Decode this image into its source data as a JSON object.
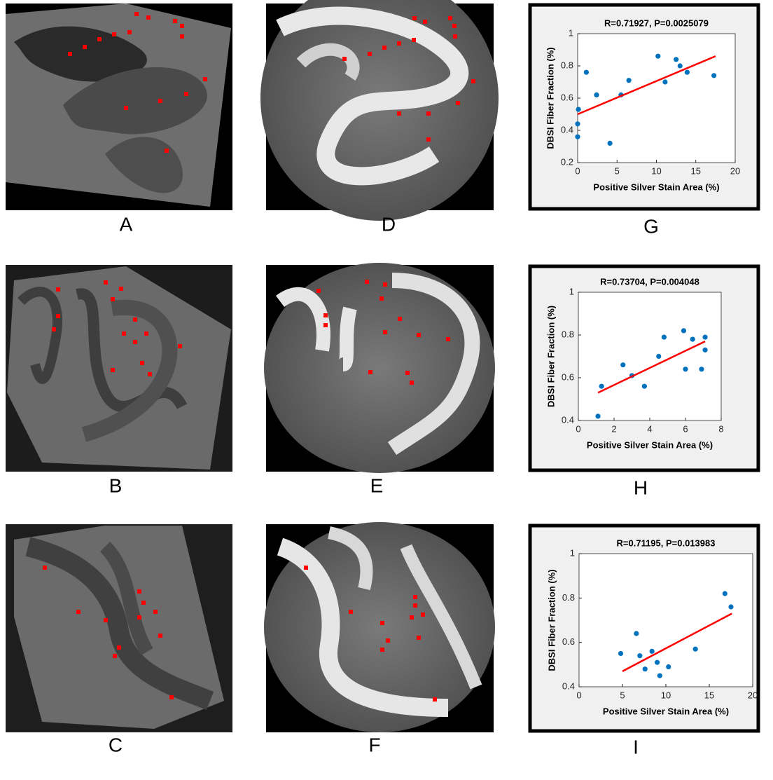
{
  "panel_labels": [
    "A",
    "B",
    "C",
    "D",
    "E",
    "F",
    "G",
    "H",
    "I"
  ],
  "chart_data": [
    {
      "type": "scatter",
      "title": "R=0.71927, P=0.0025079",
      "x_label": "Positive Silver Stain Area (%)",
      "y_label": "DBSI Fiber Fraction (%)",
      "x": [
        0,
        0,
        0.1,
        1.1,
        2.4,
        4.1,
        5.5,
        6.5,
        10.2,
        11.1,
        12.5,
        13,
        13.9,
        17.3
      ],
      "values": [
        0.36,
        0.44,
        0.53,
        0.76,
        0.62,
        0.32,
        0.62,
        0.71,
        0.86,
        0.7,
        0.84,
        0.8,
        0.76,
        0.74
      ],
      "color": "#0072bd",
      "fit": {
        "x": [
          0,
          17.5
        ],
        "values": [
          0.5,
          0.86
        ],
        "color": "#ff0000"
      },
      "xlim": [
        0,
        20
      ],
      "xticks": [
        0,
        5,
        10,
        15,
        20
      ],
      "ylim": [
        0.2,
        1
      ],
      "yticks": [
        0.2,
        0.4,
        0.6,
        0.8,
        1
      ]
    },
    {
      "type": "scatter",
      "title": "R=0.73704, P=0.004048",
      "x_label": "Positive Silver Stain Area (%)",
      "y_label": "DBSI Fiber Fraction (%)",
      "x": [
        1.1,
        1.3,
        2.5,
        3,
        3.7,
        4.5,
        4.8,
        5.9,
        6,
        6.4,
        6.9,
        7.1,
        7.1
      ],
      "values": [
        0.42,
        0.56,
        0.66,
        0.61,
        0.56,
        0.7,
        0.79,
        0.82,
        0.64,
        0.78,
        0.64,
        0.73,
        0.79
      ],
      "color": "#0072bd",
      "fit": {
        "x": [
          1.1,
          7.1
        ],
        "values": [
          0.53,
          0.77
        ],
        "color": "#ff0000"
      },
      "xlim": [
        0,
        8
      ],
      "xticks": [
        0,
        2,
        4,
        6,
        8
      ],
      "ylim": [
        0.4,
        1
      ],
      "yticks": [
        0.4,
        0.6,
        0.8,
        1
      ]
    },
    {
      "type": "scatter",
      "title": "R=0.71195, P=0.013983",
      "x_label": "Positive Silver Stain Area (%)",
      "y_label": "DBSI Fiber Fraction (%)",
      "x": [
        4.8,
        6.6,
        7,
        7.6,
        8.4,
        9,
        9.3,
        10.3,
        13.4,
        16.8,
        17.5
      ],
      "values": [
        0.55,
        0.64,
        0.54,
        0.48,
        0.56,
        0.51,
        0.45,
        0.49,
        0.57,
        0.82,
        0.76
      ],
      "color": "#0072bd",
      "fit": {
        "x": [
          5,
          17.6
        ],
        "values": [
          0.47,
          0.73
        ],
        "color": "#ff0000"
      },
      "xlim": [
        0,
        20
      ],
      "xticks": [
        0,
        5,
        10,
        15,
        20
      ],
      "ylim": [
        0.4,
        1
      ],
      "yticks": [
        0.4,
        0.6,
        0.8,
        1
      ]
    }
  ]
}
